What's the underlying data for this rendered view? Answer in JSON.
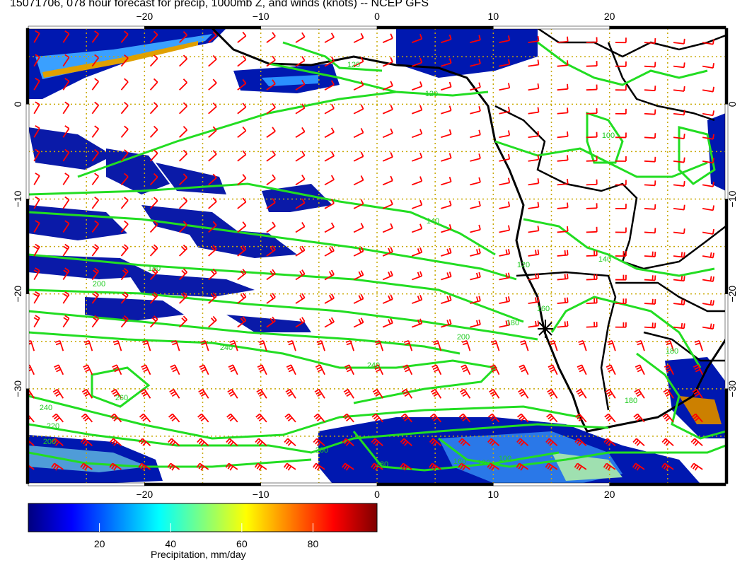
{
  "title": "15071706, 078 hour forecast for precip, 1000mb Z, and winds (knots) -- NCEP GFS",
  "map": {
    "lon_range": [
      -30,
      30
    ],
    "lat_range": [
      -40,
      8
    ],
    "lon_ticks": [
      -20,
      -10,
      0,
      10,
      20
    ],
    "lon_tick_labels": [
      "−20",
      "−10",
      "0",
      "10",
      "20"
    ],
    "lat_ticks": [
      0,
      -10,
      -20,
      -30
    ],
    "lat_tick_labels": [
      "0",
      "−10",
      "−20",
      "−30"
    ],
    "gridlines": "dotted",
    "colors": {
      "contour": "#22dd22",
      "barb": "#ff0000",
      "coast": "#000000",
      "gridline": "#c8a800"
    },
    "contour_labels": [
      "120",
      "120",
      "100",
      "140",
      "120",
      "180",
      "200",
      "140",
      "160",
      "180",
      "200",
      "240",
      "240",
      "260",
      "240",
      "220",
      "200",
      "200",
      "180",
      "160",
      "120",
      "100",
      "180",
      "180"
    ],
    "marker": "asterisk-marker"
  },
  "colorbar": {
    "label": "Precipitation, mm/day",
    "range": [
      0,
      98
    ],
    "ticks": [
      20,
      40,
      60,
      80
    ],
    "tick_labels": [
      "20",
      "40",
      "60",
      "80"
    ],
    "colors": [
      "#00007f",
      "#0000ff",
      "#007fff",
      "#00ffff",
      "#7fff7f",
      "#ffff00",
      "#ff7f00",
      "#ff0000",
      "#7f0000"
    ]
  }
}
